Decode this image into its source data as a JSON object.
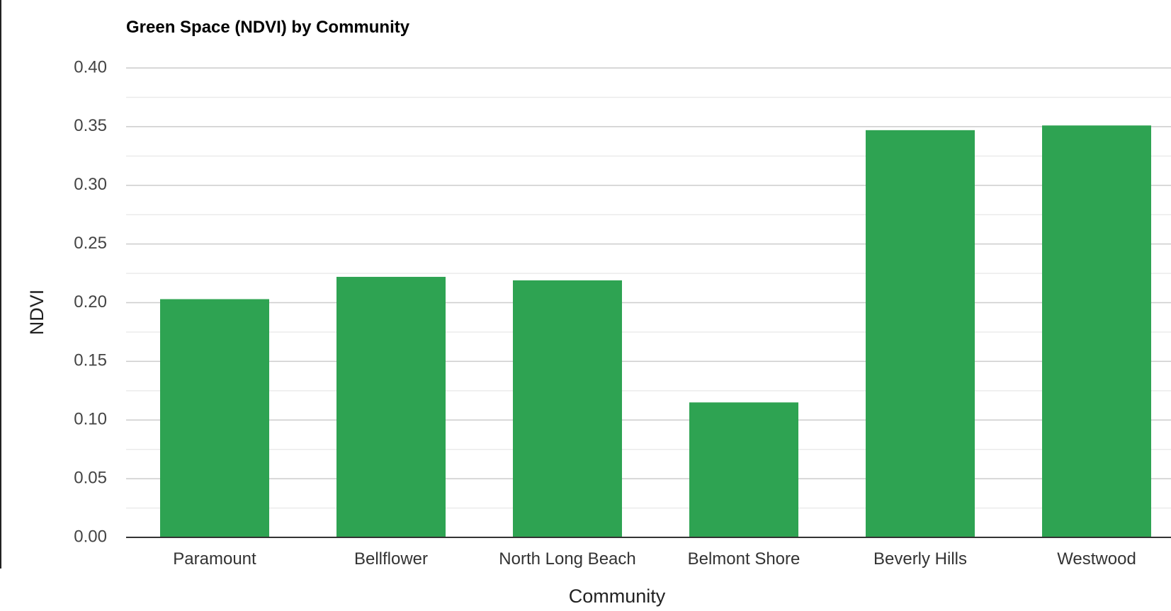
{
  "chart_data": {
    "type": "bar",
    "title": "Green Space (NDVI) by Community",
    "xlabel": "Community",
    "ylabel": "NDVI",
    "categories": [
      "Paramount",
      "Bellflower",
      "North Long Beach",
      "Belmont Shore",
      "Beverly Hills",
      "Westwood"
    ],
    "values": [
      0.203,
      0.222,
      0.219,
      0.115,
      0.347,
      0.351
    ],
    "ylim": [
      0,
      0.4
    ],
    "yticks": [
      "0.00",
      "0.05",
      "0.10",
      "0.15",
      "0.20",
      "0.25",
      "0.30",
      "0.35",
      "0.40"
    ],
    "grid": true,
    "minor_grid": true,
    "legend": "none",
    "bar_color": "#2ea352",
    "gridline_color": "#cccccc",
    "minor_gridline_color": "#ebebeb",
    "baseline_color": "#333333"
  }
}
